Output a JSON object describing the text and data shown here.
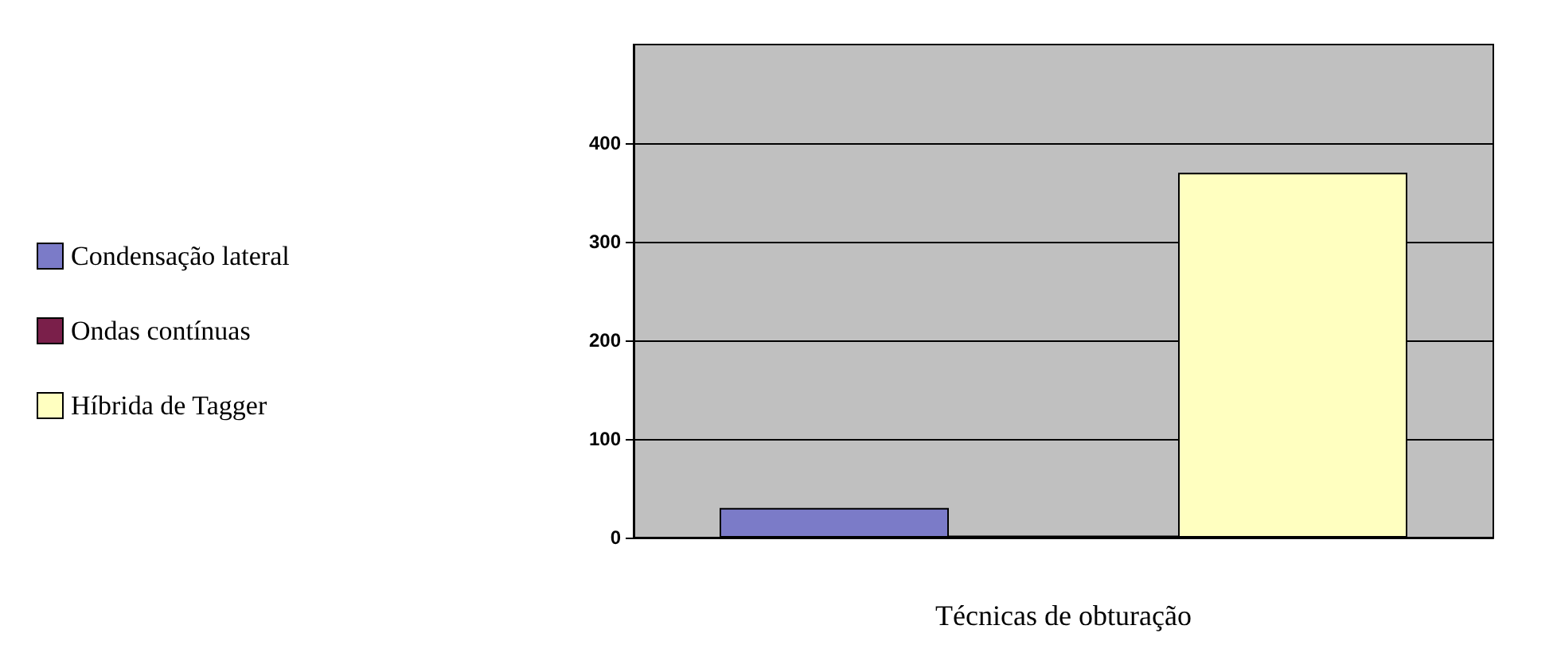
{
  "chart_data": {
    "type": "bar",
    "xlabel": "Técnicas de obturação",
    "categories": [
      null
    ],
    "series": [
      {
        "name": "Condensação lateral",
        "color": "#7b7bc8",
        "values": [
          30
        ]
      },
      {
        "name": "Ondas contínuas",
        "color": "#7a1f4a",
        "values": [
          2
        ]
      },
      {
        "name": "Híbrida de Tagger",
        "color": "#ffffc0",
        "values": [
          370
        ]
      }
    ],
    "ylim": [
      0,
      500
    ],
    "yticks": [
      0,
      100,
      200,
      300,
      400
    ],
    "grid": "y",
    "legend": "left"
  }
}
